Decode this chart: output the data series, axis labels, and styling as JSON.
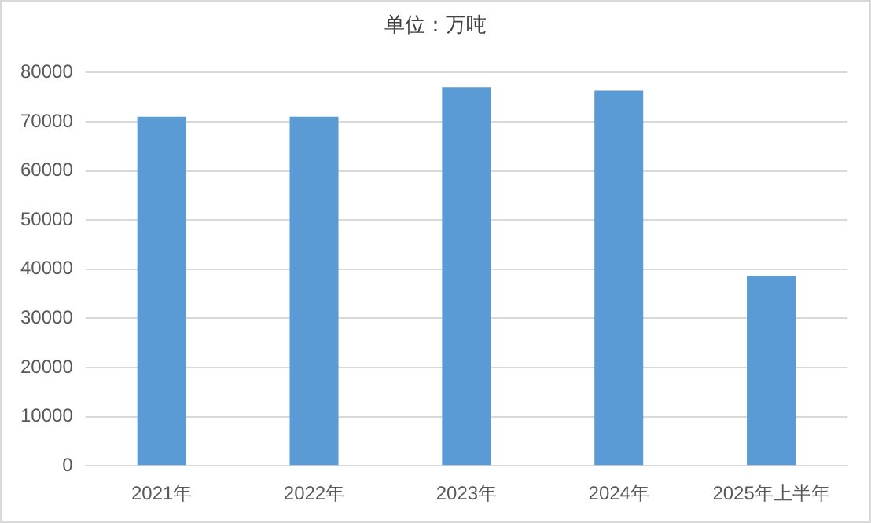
{
  "chart_data": {
    "type": "bar",
    "title": "单位：万吨",
    "categories": [
      "2021年",
      "2022年",
      "2023年",
      "2024年",
      "2025年上半年"
    ],
    "values": [
      71000,
      71000,
      77000,
      76300,
      38600
    ],
    "color": "#5b9bd5",
    "ylim": [
      0,
      80000
    ],
    "yticks": [
      0,
      10000,
      20000,
      30000,
      40000,
      50000,
      60000,
      70000,
      80000
    ],
    "grid": "y",
    "legend": false
  }
}
